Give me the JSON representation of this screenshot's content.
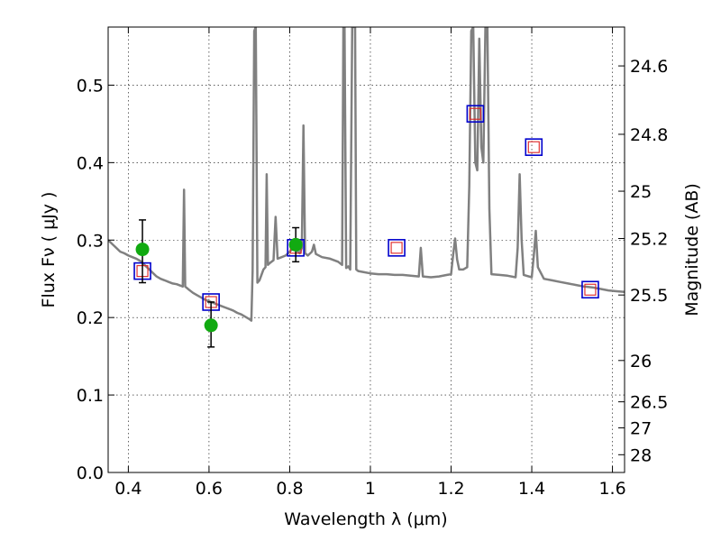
{
  "chart_data": {
    "type": "scatter",
    "xlabel": "Wavelength  λ (μm)",
    "ylabel": "Flux  Fν  ( μJy )",
    "ylabel2": "Magnitude (AB)",
    "xlim": [
      0.35,
      1.63
    ],
    "ylim": [
      0.0,
      0.575
    ],
    "x_ticks": [
      0.4,
      0.6,
      0.8,
      1.0,
      1.2,
      1.4,
      1.6
    ],
    "x_tick_labels": [
      "0.4",
      "0.6",
      "0.8",
      "1",
      "1.2",
      "1.4",
      "1.6"
    ],
    "y_ticks": [
      0.0,
      0.1,
      0.2,
      0.3,
      0.4,
      0.5
    ],
    "y_tick_labels": [
      "0.0",
      "0.1",
      "0.2",
      "0.3",
      "0.4",
      "0.5"
    ],
    "mag_ticks": [
      24.6,
      24.8,
      25,
      25.2,
      25.5,
      26,
      26.5,
      27,
      28
    ],
    "mag_tick_labels": [
      "24.6",
      "24.8",
      "25",
      "25.2",
      "25.5",
      "26",
      "26.5",
      "27",
      "28"
    ],
    "grid": true,
    "colors": {
      "spectrum": "#808080",
      "observed": "#11aa11",
      "model_box_outer": "#0000cc",
      "model_box_inner": "#dd2222"
    },
    "series": [
      {
        "kind": "line",
        "points": [
          [
            0.35,
            0.3
          ],
          [
            0.36,
            0.295
          ],
          [
            0.37,
            0.29
          ],
          [
            0.38,
            0.285
          ],
          [
            0.39,
            0.283
          ],
          [
            0.4,
            0.28
          ],
          [
            0.41,
            0.278
          ],
          [
            0.42,
            0.276
          ],
          [
            0.43,
            0.273
          ],
          [
            0.44,
            0.268
          ],
          [
            0.45,
            0.263
          ],
          [
            0.46,
            0.258
          ],
          [
            0.47,
            0.253
          ],
          [
            0.48,
            0.25
          ],
          [
            0.49,
            0.248
          ],
          [
            0.5,
            0.246
          ],
          [
            0.51,
            0.244
          ],
          [
            0.52,
            0.243
          ],
          [
            0.53,
            0.241
          ],
          [
            0.535,
            0.24
          ],
          [
            0.538,
            0.365
          ],
          [
            0.541,
            0.24
          ],
          [
            0.55,
            0.236
          ],
          [
            0.56,
            0.232
          ],
          [
            0.57,
            0.229
          ],
          [
            0.58,
            0.226
          ],
          [
            0.59,
            0.223
          ],
          [
            0.6,
            0.221
          ],
          [
            0.61,
            0.219
          ],
          [
            0.62,
            0.217
          ],
          [
            0.63,
            0.215
          ],
          [
            0.64,
            0.213
          ],
          [
            0.65,
            0.211
          ],
          [
            0.66,
            0.209
          ],
          [
            0.67,
            0.206
          ],
          [
            0.68,
            0.204
          ],
          [
            0.69,
            0.201
          ],
          [
            0.7,
            0.198
          ],
          [
            0.705,
            0.196
          ],
          [
            0.708,
            0.26
          ],
          [
            0.712,
            0.57
          ],
          [
            0.716,
            0.575
          ],
          [
            0.72,
            0.245
          ],
          [
            0.725,
            0.248
          ],
          [
            0.73,
            0.255
          ],
          [
            0.735,
            0.262
          ],
          [
            0.74,
            0.265
          ],
          [
            0.743,
            0.385
          ],
          [
            0.746,
            0.268
          ],
          [
            0.75,
            0.27
          ],
          [
            0.755,
            0.272
          ],
          [
            0.76,
            0.274
          ],
          [
            0.765,
            0.33
          ],
          [
            0.77,
            0.276
          ],
          [
            0.78,
            0.278
          ],
          [
            0.79,
            0.28
          ],
          [
            0.8,
            0.285
          ],
          [
            0.81,
            0.29
          ],
          [
            0.815,
            0.3
          ],
          [
            0.82,
            0.285
          ],
          [
            0.825,
            0.283
          ],
          [
            0.83,
            0.29
          ],
          [
            0.834,
            0.448
          ],
          [
            0.838,
            0.283
          ],
          [
            0.845,
            0.28
          ],
          [
            0.855,
            0.285
          ],
          [
            0.86,
            0.294
          ],
          [
            0.865,
            0.282
          ],
          [
            0.88,
            0.278
          ],
          [
            0.9,
            0.276
          ],
          [
            0.92,
            0.272
          ],
          [
            0.93,
            0.268
          ],
          [
            0.933,
            0.575
          ],
          [
            0.936,
            0.575
          ],
          [
            0.94,
            0.264
          ],
          [
            0.945,
            0.266
          ],
          [
            0.95,
            0.262
          ],
          [
            0.955,
            0.575
          ],
          [
            0.962,
            0.575
          ],
          [
            0.965,
            0.262
          ],
          [
            0.97,
            0.26
          ],
          [
            0.98,
            0.259
          ],
          [
            1.0,
            0.257
          ],
          [
            1.02,
            0.256
          ],
          [
            1.04,
            0.256
          ],
          [
            1.06,
            0.255
          ],
          [
            1.08,
            0.255
          ],
          [
            1.1,
            0.254
          ],
          [
            1.12,
            0.253
          ],
          [
            1.125,
            0.29
          ],
          [
            1.13,
            0.253
          ],
          [
            1.15,
            0.252
          ],
          [
            1.17,
            0.253
          ],
          [
            1.19,
            0.255
          ],
          [
            1.2,
            0.256
          ],
          [
            1.205,
            0.28
          ],
          [
            1.21,
            0.302
          ],
          [
            1.215,
            0.275
          ],
          [
            1.22,
            0.262
          ],
          [
            1.23,
            0.262
          ],
          [
            1.24,
            0.265
          ],
          [
            1.245,
            0.37
          ],
          [
            1.25,
            0.57
          ],
          [
            1.255,
            0.575
          ],
          [
            1.26,
            0.4
          ],
          [
            1.265,
            0.39
          ],
          [
            1.27,
            0.56
          ],
          [
            1.275,
            0.42
          ],
          [
            1.28,
            0.4
          ],
          [
            1.285,
            0.575
          ],
          [
            1.29,
            0.575
          ],
          [
            1.295,
            0.34
          ],
          [
            1.3,
            0.256
          ],
          [
            1.32,
            0.255
          ],
          [
            1.34,
            0.254
          ],
          [
            1.36,
            0.252
          ],
          [
            1.365,
            0.29
          ],
          [
            1.37,
            0.385
          ],
          [
            1.375,
            0.3
          ],
          [
            1.38,
            0.255
          ],
          [
            1.4,
            0.252
          ],
          [
            1.405,
            0.28
          ],
          [
            1.41,
            0.312
          ],
          [
            1.415,
            0.265
          ],
          [
            1.43,
            0.25
          ],
          [
            1.45,
            0.248
          ],
          [
            1.47,
            0.246
          ],
          [
            1.49,
            0.244
          ],
          [
            1.51,
            0.242
          ],
          [
            1.53,
            0.24
          ],
          [
            1.55,
            0.239
          ],
          [
            1.57,
            0.237
          ],
          [
            1.59,
            0.235
          ],
          [
            1.61,
            0.234
          ],
          [
            1.63,
            0.233
          ]
        ]
      },
      {
        "kind": "observed",
        "points": [
          {
            "x": 0.435,
            "y": 0.288,
            "yerr_low": 0.245,
            "yerr_high": 0.326
          },
          {
            "x": 0.605,
            "y": 0.19,
            "yerr_low": 0.162,
            "yerr_high": 0.22
          },
          {
            "x": 0.815,
            "y": 0.294,
            "yerr_low": 0.272,
            "yerr_high": 0.316
          }
        ]
      },
      {
        "kind": "model",
        "points": [
          {
            "x": 0.435,
            "y": 0.26
          },
          {
            "x": 0.605,
            "y": 0.22
          },
          {
            "x": 0.815,
            "y": 0.29
          },
          {
            "x": 1.065,
            "y": 0.29
          },
          {
            "x": 1.26,
            "y": 0.463
          },
          {
            "x": 1.405,
            "y": 0.42
          },
          {
            "x": 1.545,
            "y": 0.236
          }
        ]
      }
    ]
  }
}
